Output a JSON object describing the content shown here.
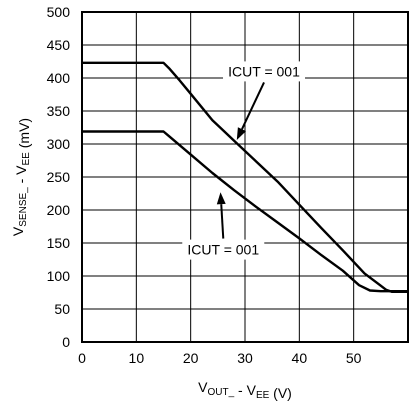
{
  "chart_data": {
    "type": "line",
    "title": "",
    "xlabel": {
      "parts": [
        {
          "text": "V",
          "sub": false
        },
        {
          "text": "OUT_",
          "sub": true
        },
        {
          "text": " - V",
          "sub": false
        },
        {
          "text": "EE",
          "sub": true
        },
        {
          "text": " (V)",
          "sub": false
        }
      ]
    },
    "ylabel": {
      "parts": [
        {
          "text": "V",
          "sub": false
        },
        {
          "text": "SENSE_",
          "sub": true
        },
        {
          "text": " - V",
          "sub": false
        },
        {
          "text": "EE",
          "sub": true
        },
        {
          "text": " (mV)",
          "sub": false
        }
      ]
    },
    "xlim": [
      0,
      60
    ],
    "ylim": [
      0,
      500
    ],
    "xticks": [
      0,
      10,
      20,
      30,
      40,
      50
    ],
    "yticks": [
      0,
      50,
      100,
      150,
      200,
      250,
      300,
      350,
      400,
      450,
      500
    ],
    "grid": true,
    "series": [
      {
        "x": [
          0,
          5,
          10,
          15,
          16,
          18,
          20,
          24,
          28,
          32,
          36,
          40,
          44,
          48,
          52,
          56,
          57,
          60
        ],
        "y": [
          423,
          423,
          423,
          423,
          415,
          396,
          376,
          336,
          305,
          274,
          243,
          208,
          173,
          139,
          104,
          79,
          76,
          76
        ]
      },
      {
        "x": [
          0,
          5,
          10,
          15,
          16,
          18,
          20,
          24,
          28,
          32,
          36,
          40,
          44,
          48,
          51,
          53,
          55,
          60
        ],
        "y": [
          319,
          319,
          319,
          319,
          312,
          298,
          284,
          256,
          230,
          205,
          181,
          157,
          132,
          108,
          86,
          78,
          77,
          77
        ]
      }
    ],
    "annotations": [
      {
        "text": "ICUT = 001",
        "anchor": [
          33.5,
          410
        ],
        "arrow_tip": [
          28.5,
          306
        ]
      },
      {
        "text": "ICUT = 001",
        "anchor": [
          26,
          140
        ],
        "arrow_tip": [
          25.5,
          227
        ]
      }
    ]
  }
}
